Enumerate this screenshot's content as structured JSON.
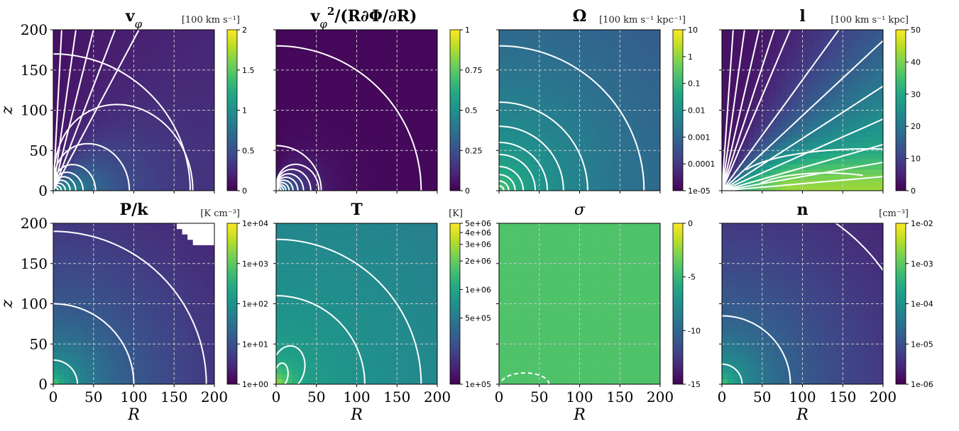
{
  "figure": {
    "x_label": "R",
    "y_label": "z"
  },
  "chart_data": [
    {
      "type": "heatmap",
      "title": "v_φ",
      "title_parts": [
        {
          "t": "v",
          "b": true
        },
        {
          "t": "φ",
          "sub": true
        }
      ],
      "unit": "[100 km s⁻¹]",
      "x_ticks": [
        "0",
        "50",
        "100",
        "150",
        "200"
      ],
      "y_ticks": [
        "0",
        "50",
        "100",
        "150",
        "200"
      ],
      "xlim": [
        0,
        200
      ],
      "ylim": [
        0,
        200
      ],
      "show_x_tick_labels": false,
      "show_y_tick_labels": true,
      "show_xlabel": false,
      "show_ylabel": true,
      "colorbar": {
        "scale": "linear",
        "range": [
          0,
          2
        ],
        "ticks": [
          {
            "v": 0,
            "l": "0"
          },
          {
            "v": 0.5,
            "l": "0.5"
          },
          {
            "v": 1,
            "l": "1"
          },
          {
            "v": 1.5,
            "l": "1.5"
          },
          {
            "v": 2,
            "l": "2"
          }
        ]
      },
      "field": {
        "kind": "vphi"
      },
      "contours": {
        "kind": "vphi"
      }
    },
    {
      "type": "heatmap",
      "title": "v_φ²/(R∂Φ/∂R)",
      "title_parts": [
        {
          "t": "v",
          "b": true
        },
        {
          "t": "φ",
          "sub": true
        },
        {
          "t": "2",
          "sup": true
        },
        {
          "t": "/(R∂Φ/∂R)",
          "b": true
        }
      ],
      "unit": "",
      "x_ticks": [
        "0",
        "50",
        "100",
        "150",
        "200"
      ],
      "y_ticks": [
        "0",
        "50",
        "100",
        "150",
        "200"
      ],
      "xlim": [
        0,
        200
      ],
      "ylim": [
        0,
        200
      ],
      "show_x_tick_labels": false,
      "show_y_tick_labels": false,
      "show_xlabel": false,
      "show_ylabel": false,
      "colorbar": {
        "scale": "linear",
        "range": [
          0,
          1
        ],
        "ticks": [
          {
            "v": 0,
            "l": "0"
          },
          {
            "v": 0.25,
            "l": "0.25"
          },
          {
            "v": 0.5,
            "l": "0.5"
          },
          {
            "v": 0.75,
            "l": "0.75"
          },
          {
            "v": 1,
            "l": "1"
          }
        ]
      },
      "field": {
        "kind": "ratio"
      },
      "contours": {
        "kind": "ratio"
      }
    },
    {
      "type": "heatmap",
      "title": "Ω",
      "title_parts": [
        {
          "t": "Ω",
          "b": true
        }
      ],
      "unit": "[100 km s⁻¹ kpc⁻¹]",
      "x_ticks": [
        "0",
        "50",
        "100",
        "150",
        "200"
      ],
      "y_ticks": [
        "0",
        "50",
        "100",
        "150",
        "200"
      ],
      "xlim": [
        0,
        200
      ],
      "ylim": [
        0,
        200
      ],
      "show_x_tick_labels": false,
      "show_y_tick_labels": false,
      "show_xlabel": false,
      "show_ylabel": false,
      "colorbar": {
        "scale": "log",
        "range": [
          -5,
          1
        ],
        "ticks": [
          {
            "v": -5,
            "l": "1e-05"
          },
          {
            "v": -4,
            "l": "0.0001"
          },
          {
            "v": -3,
            "l": "0.001"
          },
          {
            "v": -2,
            "l": "0.01"
          },
          {
            "v": -1,
            "l": "0.1"
          },
          {
            "v": 0,
            "l": "1"
          },
          {
            "v": 1,
            "l": "10"
          }
        ]
      },
      "field": {
        "kind": "omega"
      },
      "contours": {
        "kind": "omega"
      }
    },
    {
      "type": "heatmap",
      "title": "l",
      "title_parts": [
        {
          "t": "l",
          "b": true
        }
      ],
      "unit": "[100 km s⁻¹ kpc]",
      "x_ticks": [
        "0",
        "50",
        "100",
        "150",
        "200"
      ],
      "y_ticks": [
        "0",
        "50",
        "100",
        "150",
        "200"
      ],
      "xlim": [
        0,
        200
      ],
      "ylim": [
        0,
        200
      ],
      "show_x_tick_labels": false,
      "show_y_tick_labels": false,
      "show_xlabel": false,
      "show_ylabel": false,
      "colorbar": {
        "scale": "linear",
        "range": [
          0,
          50
        ],
        "ticks": [
          {
            "v": 0,
            "l": "0"
          },
          {
            "v": 10,
            "l": "10"
          },
          {
            "v": 20,
            "l": "20"
          },
          {
            "v": 30,
            "l": "30"
          },
          {
            "v": 40,
            "l": "40"
          },
          {
            "v": 50,
            "l": "50"
          }
        ]
      },
      "field": {
        "kind": "angmom"
      },
      "contours": {
        "kind": "angmom"
      }
    },
    {
      "type": "heatmap",
      "title": "P/k",
      "title_parts": [
        {
          "t": "P/k",
          "b": true
        }
      ],
      "unit": "[K cm⁻³]",
      "x_ticks": [
        "0",
        "50",
        "100",
        "150",
        "200"
      ],
      "y_ticks": [
        "0",
        "50",
        "100",
        "150",
        "200"
      ],
      "xlim": [
        0,
        200
      ],
      "ylim": [
        0,
        200
      ],
      "show_x_tick_labels": true,
      "show_y_tick_labels": true,
      "show_xlabel": true,
      "show_ylabel": true,
      "colorbar": {
        "scale": "log",
        "range": [
          0,
          4
        ],
        "ticks": [
          {
            "v": 0,
            "l": "1e+00"
          },
          {
            "v": 1,
            "l": "1e+01"
          },
          {
            "v": 2,
            "l": "1e+02"
          },
          {
            "v": 3,
            "l": "1e+03"
          },
          {
            "v": 4,
            "l": "1e+04"
          }
        ]
      },
      "field": {
        "kind": "pressure"
      },
      "contours": {
        "kind": "pressure"
      }
    },
    {
      "type": "heatmap",
      "title": "T",
      "title_parts": [
        {
          "t": "T",
          "b": true
        }
      ],
      "unit": "[K]",
      "x_ticks": [
        "0",
        "50",
        "100",
        "150",
        "200"
      ],
      "y_ticks": [
        "0",
        "50",
        "100",
        "150",
        "200"
      ],
      "xlim": [
        0,
        200
      ],
      "ylim": [
        0,
        200
      ],
      "show_x_tick_labels": true,
      "show_y_tick_labels": false,
      "show_xlabel": true,
      "show_ylabel": false,
      "colorbar": {
        "scale": "log",
        "range": [
          5,
          6.699
        ],
        "ticks": [
          {
            "v": 5,
            "l": "1e+05"
          },
          {
            "v": 5.699,
            "l": "5e+05"
          },
          {
            "v": 6,
            "l": "1e+06"
          },
          {
            "v": 6.301,
            "l": "2e+06"
          },
          {
            "v": 6.477,
            "l": "3e+06"
          },
          {
            "v": 6.602,
            "l": "4e+06"
          },
          {
            "v": 6.699,
            "l": "5e+06"
          }
        ]
      },
      "field": {
        "kind": "temperature"
      },
      "contours": {
        "kind": "temperature"
      }
    },
    {
      "type": "heatmap",
      "title": "σ",
      "title_parts": [
        {
          "t": "σ",
          "i": true
        }
      ],
      "unit": "",
      "x_ticks": [
        "0",
        "50",
        "100",
        "150",
        "200"
      ],
      "y_ticks": [
        "0",
        "50",
        "100",
        "150",
        "200"
      ],
      "xlim": [
        0,
        200
      ],
      "ylim": [
        0,
        200
      ],
      "show_x_tick_labels": true,
      "show_y_tick_labels": false,
      "show_xlabel": true,
      "show_ylabel": false,
      "colorbar": {
        "scale": "linear",
        "range": [
          -15,
          0
        ],
        "ticks": [
          {
            "v": -15,
            "l": "-15"
          },
          {
            "v": -10,
            "l": "-10"
          },
          {
            "v": -5,
            "l": "-5"
          },
          {
            "v": 0,
            "l": "0"
          }
        ]
      },
      "field": {
        "kind": "sigma"
      },
      "contours": {
        "kind": "sigma"
      }
    },
    {
      "type": "heatmap",
      "title": "n",
      "title_parts": [
        {
          "t": "n",
          "b": true
        }
      ],
      "unit": "[cm⁻³]",
      "x_ticks": [
        "0",
        "50",
        "100",
        "150",
        "200"
      ],
      "y_ticks": [
        "0",
        "50",
        "100",
        "150",
        "200"
      ],
      "xlim": [
        0,
        200
      ],
      "ylim": [
        0,
        200
      ],
      "show_x_tick_labels": true,
      "show_y_tick_labels": false,
      "show_xlabel": true,
      "show_ylabel": false,
      "colorbar": {
        "scale": "log",
        "range": [
          -6,
          -2
        ],
        "ticks": [
          {
            "v": -6,
            "l": "1e-06"
          },
          {
            "v": -5,
            "l": "1e-05"
          },
          {
            "v": -4,
            "l": "1e-04"
          },
          {
            "v": -3,
            "l": "1e-03"
          },
          {
            "v": -2,
            "l": "1e-02"
          }
        ]
      },
      "field": {
        "kind": "density"
      },
      "contours": {
        "kind": "density"
      }
    }
  ]
}
